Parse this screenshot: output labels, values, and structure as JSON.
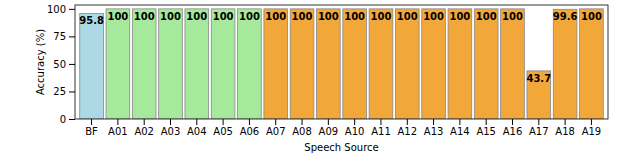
{
  "chart_data": {
    "type": "bar",
    "x_label": "Speech Source",
    "y_label": "Accuracy (%)",
    "categories": [
      "BF",
      "A01",
      "A02",
      "A03",
      "A04",
      "A05",
      "A06",
      "A07",
      "A08",
      "A09",
      "A10",
      "A11",
      "A12",
      "A13",
      "A14",
      "A15",
      "A16",
      "A17",
      "A18",
      "A19"
    ],
    "values": [
      95.8,
      100,
      100,
      100,
      100,
      100,
      100,
      100,
      100,
      100,
      100,
      100,
      100,
      100,
      100,
      100,
      100,
      43.7,
      99.6,
      100
    ],
    "colors": [
      "#add8e6",
      "#a6e89c",
      "#a6e89c",
      "#a6e89c",
      "#a6e89c",
      "#a6e89c",
      "#a6e89c",
      "#f2a73b",
      "#f2a73b",
      "#f2a73b",
      "#f2a73b",
      "#f2a73b",
      "#f2a73b",
      "#f2a73b",
      "#f2a73b",
      "#f2a73b",
      "#f2a73b",
      "#f2a73b",
      "#f2a73b",
      "#f2a73b"
    ],
    "ylim": [
      0,
      103.5
    ],
    "yticks": [
      0,
      25,
      50,
      75,
      100
    ],
    "grid": false,
    "data_labels": true
  }
}
